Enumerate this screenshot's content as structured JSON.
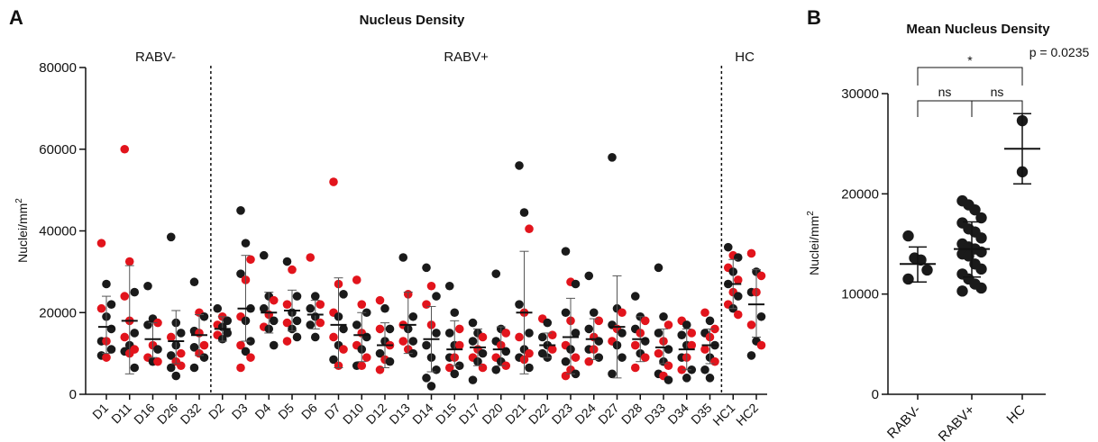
{
  "panels": {
    "a_letter": "A",
    "b_letter": "B"
  },
  "colors": {
    "black": "#1a1a1a",
    "red": "#e2141c"
  },
  "chart_data": [
    {
      "type": "scatter",
      "panel": "A",
      "title": "Nucleus Density",
      "ylabel": "Nuclei/mm",
      "ylabel_sup": "2",
      "ylim": [
        0,
        80000
      ],
      "yticks": [
        0,
        20000,
        40000,
        60000,
        80000
      ],
      "groups": [
        "RABV-",
        "RABV+",
        "HC"
      ],
      "categories": [
        "D1",
        "D11",
        "D16",
        "D26",
        "D32",
        "D2",
        "D3",
        "D4",
        "D5",
        "D6",
        "D7",
        "D10",
        "D12",
        "D13",
        "D14",
        "D15",
        "D17",
        "D20",
        "D21",
        "D22",
        "D23",
        "D24",
        "D27",
        "D28",
        "D33",
        "D34",
        "D35",
        "HC1",
        "HC2"
      ],
      "group_of": [
        "RABV-",
        "RABV-",
        "RABV-",
        "RABV-",
        "RABV-",
        "RABV+",
        "RABV+",
        "RABV+",
        "RABV+",
        "RABV+",
        "RABV+",
        "RABV+",
        "RABV+",
        "RABV+",
        "RABV+",
        "RABV+",
        "RABV+",
        "RABV+",
        "RABV+",
        "RABV+",
        "RABV+",
        "RABV+",
        "RABV+",
        "RABV+",
        "RABV+",
        "RABV+",
        "RABV+",
        "HC",
        "HC"
      ],
      "mean": [
        16500,
        18000,
        13500,
        13000,
        14500,
        16000,
        21000,
        20000,
        20500,
        19500,
        17000,
        14500,
        12000,
        17000,
        13500,
        11000,
        11500,
        11000,
        20000,
        12000,
        14000,
        13500,
        16500,
        13500,
        11500,
        11000,
        12000,
        27000,
        22000
      ],
      "sd_low": [
        10000,
        5000,
        9000,
        7500,
        9500,
        13000,
        13000,
        15000,
        15500,
        16000,
        6500,
        8000,
        6500,
        10000,
        5500,
        7000,
        7000,
        7000,
        5000,
        9000,
        5000,
        8500,
        4000,
        8000,
        7500,
        6000,
        7500,
        21000,
        14000
      ],
      "sd_high": [
        24000,
        31500,
        17500,
        20500,
        19500,
        19000,
        34000,
        25000,
        25500,
        23000,
        28500,
        20000,
        17500,
        25000,
        21500,
        18000,
        16000,
        16500,
        35000,
        15000,
        23500,
        18500,
        29000,
        19000,
        16000,
        16000,
        16000,
        33000,
        30500
      ],
      "points_black": [
        [
          27000,
          22000,
          19000,
          16000,
          13000,
          11000,
          9500
        ],
        [
          25000,
          15000,
          12000,
          10500,
          6500
        ],
        [
          26500,
          18500,
          17000,
          11000,
          8000
        ],
        [
          38500,
          17500,
          15000,
          12000,
          9500,
          6500,
          4500
        ],
        [
          27500,
          19000,
          15500,
          11500,
          9000,
          6500
        ],
        [
          21000,
          18000,
          16500,
          15000,
          13500
        ],
        [
          45000,
          37000,
          29500,
          21000,
          18000,
          13000,
          10500
        ],
        [
          34000,
          24000,
          21000,
          18000,
          16000,
          12000
        ],
        [
          32500,
          24000,
          20000,
          18000,
          16000,
          14000
        ],
        [
          24000,
          21000,
          19000,
          17000,
          14000
        ],
        [
          24500,
          19000,
          16000,
          12000,
          8500
        ],
        [
          20000,
          17000,
          14000,
          11000,
          7000
        ],
        [
          21000,
          16000,
          13000,
          10000,
          8000
        ],
        [
          33500,
          19000,
          16000,
          13000,
          10000
        ],
        [
          31000,
          24000,
          15000,
          12000,
          9000,
          6000,
          4000,
          2000
        ],
        [
          26500,
          20000,
          15000,
          12000,
          9000,
          7000,
          5000
        ],
        [
          17500,
          15000,
          13000,
          10000,
          8000,
          3500
        ],
        [
          29500,
          16000,
          13000,
          10500,
          8000,
          6000
        ],
        [
          56000,
          44500,
          22000,
          15000,
          11000,
          9000,
          6500
        ],
        [
          17500,
          14000,
          12000,
          10000,
          9000
        ],
        [
          35000,
          27000,
          20000,
          15000,
          11000,
          8000,
          5000
        ],
        [
          29000,
          20000,
          16000,
          13000,
          11000,
          9000
        ],
        [
          58000,
          21000,
          17000,
          15000,
          12000,
          9000,
          5000
        ],
        [
          24000,
          19000,
          16000,
          13000,
          10000
        ],
        [
          31000,
          19000,
          15000,
          11000,
          8000,
          5000,
          3500
        ],
        [
          17000,
          14500,
          12000,
          9000,
          6000,
          4000
        ],
        [
          18000,
          15000,
          12000,
          9000,
          6000,
          4000
        ],
        [
          36000,
          33500,
          30000,
          27000,
          24000,
          21000
        ],
        [
          30000,
          25000,
          19000,
          13000,
          9500
        ]
      ],
      "points_red": [
        [
          37000,
          21000,
          13000,
          9000
        ],
        [
          60000,
          32500,
          24000,
          18000,
          14000,
          11000,
          10000
        ],
        [
          17500,
          12000,
          9000,
          8000
        ],
        [
          14000,
          10000,
          8000,
          7000
        ],
        [
          20000,
          15000,
          12000,
          10000
        ],
        [
          19000,
          17000,
          14500
        ],
        [
          33000,
          28000,
          19000,
          12000,
          9000,
          6500
        ],
        [
          23000,
          19500,
          16500
        ],
        [
          30500,
          22000,
          17500,
          13000
        ],
        [
          33500,
          22000,
          17500
        ],
        [
          52000,
          27000,
          20000,
          14000,
          11000,
          7000
        ],
        [
          28000,
          22000,
          15000,
          12000,
          9000,
          7000
        ],
        [
          23000,
          16000,
          12000,
          8500,
          6000
        ],
        [
          24500,
          17000,
          13000,
          11000
        ],
        [
          26500,
          22000,
          17000
        ],
        [
          16000,
          12000,
          9000,
          6500
        ],
        [
          14000,
          11000,
          9000,
          6500
        ],
        [
          15000,
          12000,
          9000,
          7000
        ],
        [
          40500,
          20000,
          14000,
          10000,
          8500
        ],
        [
          18500,
          14500,
          11000
        ],
        [
          27500,
          18000,
          12000,
          9000,
          6000,
          4500
        ],
        [
          18000,
          14000,
          11000,
          8000
        ],
        [
          20000,
          16000,
          13000
        ],
        [
          18000,
          15000,
          12000,
          9000,
          6500
        ],
        [
          17000,
          13000,
          10000,
          7000,
          4500
        ],
        [
          18000,
          15000,
          12000,
          9000,
          6000
        ],
        [
          20000,
          16000,
          14000,
          11000,
          8000
        ],
        [
          34000,
          31000,
          28000,
          25000,
          22000,
          19500
        ],
        [
          34500,
          29000,
          25000,
          17000,
          12000
        ]
      ],
      "group_labels": [
        "RABV-",
        "RABV+",
        "HC"
      ]
    },
    {
      "type": "scatter",
      "panel": "B",
      "title": "Mean Nucleus  Density",
      "ylabel": "Nuclei/mm",
      "ylabel_sup": "2",
      "ylim": [
        0,
        30000
      ],
      "yticks": [
        0,
        10000,
        20000,
        30000
      ],
      "categories": [
        "RABV-",
        "RABV+",
        "HC"
      ],
      "mean": [
        13000,
        14500,
        24500
      ],
      "sd_low": [
        11200,
        11700,
        21000
      ],
      "sd_high": [
        14700,
        17200,
        28000
      ],
      "points": [
        [
          15800,
          13600,
          13400,
          12400,
          11500
        ],
        [
          19300,
          18900,
          18400,
          17600,
          17100,
          16500,
          16200,
          15600,
          15000,
          14700,
          14500,
          14200,
          14000,
          13800,
          13000,
          12500,
          12000,
          11500,
          11000,
          10600,
          10300
        ],
        [
          27300,
          22200
        ]
      ],
      "annotations": {
        "sig_top": "*",
        "p_value": "p = 0.0235",
        "ns_left": "ns",
        "ns_right": "ns"
      }
    }
  ]
}
